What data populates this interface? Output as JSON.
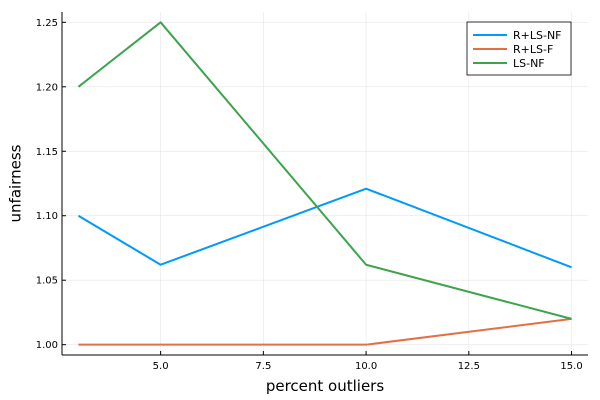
{
  "chart_data": {
    "type": "line",
    "xlabel": "percent outliers",
    "ylabel": "unfairness",
    "xlim": [
      2.6,
      15.4
    ],
    "ylim": [
      0.992,
      1.258
    ],
    "x_ticks": [
      5.0,
      7.5,
      10.0,
      12.5,
      15.0
    ],
    "x_tick_labels": [
      "5.0",
      "7.5",
      "10.0",
      "12.5",
      "15.0"
    ],
    "y_ticks": [
      1.0,
      1.05,
      1.1,
      1.15,
      1.2,
      1.25
    ],
    "y_tick_labels": [
      "1.00",
      "1.05",
      "1.10",
      "1.15",
      "1.20",
      "1.25"
    ],
    "grid": true,
    "legend_position": "top-right",
    "x": [
      3,
      5,
      10,
      15
    ],
    "series": [
      {
        "name": "R+LS-NF",
        "color": "#009af9",
        "values": [
          1.1,
          1.062,
          1.121,
          1.06
        ]
      },
      {
        "name": "R+LS-F",
        "color": "#e26f46",
        "values": [
          1.0,
          1.0,
          1.0,
          1.02
        ]
      },
      {
        "name": "LS-NF",
        "color": "#3da44d",
        "values": [
          1.2,
          1.25,
          1.062,
          1.02
        ]
      }
    ]
  }
}
